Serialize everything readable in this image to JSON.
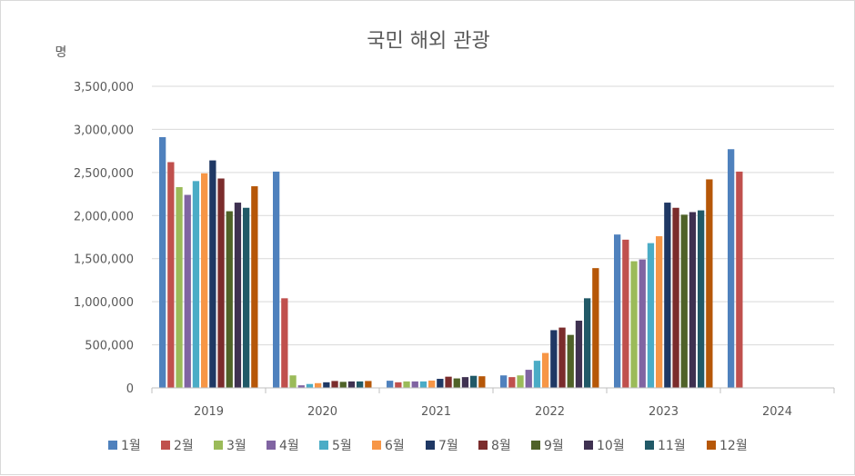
{
  "chart_data": {
    "type": "bar",
    "title": "국민 해외 관광",
    "ylabel": "명",
    "xlabel": "",
    "ylim": [
      0,
      3500000
    ],
    "ytick_values": [
      0,
      500000,
      1000000,
      1500000,
      2000000,
      2500000,
      3000000,
      3500000
    ],
    "ytick_labels": [
      "0",
      "500,000",
      "1,000,000",
      "1,500,000",
      "2,000,000",
      "2,500,000",
      "3,000,000",
      "3,500,000"
    ],
    "categories": [
      "2019",
      "2020",
      "2021",
      "2022",
      "2023",
      "2024"
    ],
    "grid": true,
    "legend_position": "bottom",
    "series": [
      {
        "name": "1월",
        "color": "#4f81bd",
        "values": [
          2910000,
          2510000,
          83000,
          145000,
          1780000,
          2770000
        ]
      },
      {
        "name": "2월",
        "color": "#c0504d",
        "values": [
          2620000,
          1040000,
          65000,
          125000,
          1720000,
          2510000
        ]
      },
      {
        "name": "3월",
        "color": "#9bbb59",
        "values": [
          2330000,
          145000,
          75000,
          145000,
          1470000,
          null
        ]
      },
      {
        "name": "4월",
        "color": "#8064a2",
        "values": [
          2240000,
          30000,
          75000,
          210000,
          1490000,
          null
        ]
      },
      {
        "name": "5월",
        "color": "#4bacc6",
        "values": [
          2400000,
          45000,
          75000,
          315000,
          1680000,
          null
        ]
      },
      {
        "name": "6월",
        "color": "#f79646",
        "values": [
          2490000,
          55000,
          85000,
          405000,
          1760000,
          null
        ]
      },
      {
        "name": "7월",
        "color": "#1f3864",
        "values": [
          2640000,
          65000,
          105000,
          670000,
          2150000,
          null
        ]
      },
      {
        "name": "8월",
        "color": "#7b2c2c",
        "values": [
          2430000,
          80000,
          130000,
          700000,
          2090000,
          null
        ]
      },
      {
        "name": "9월",
        "color": "#4f6228",
        "values": [
          2050000,
          70000,
          110000,
          615000,
          2010000,
          null
        ]
      },
      {
        "name": "10월",
        "color": "#3f3151",
        "values": [
          2150000,
          75000,
          125000,
          780000,
          2040000,
          null
        ]
      },
      {
        "name": "11월",
        "color": "#215967",
        "values": [
          2090000,
          75000,
          140000,
          1040000,
          2060000,
          null
        ]
      },
      {
        "name": "12월",
        "color": "#b65708",
        "values": [
          2340000,
          80000,
          135000,
          1390000,
          2420000,
          null
        ]
      }
    ]
  }
}
